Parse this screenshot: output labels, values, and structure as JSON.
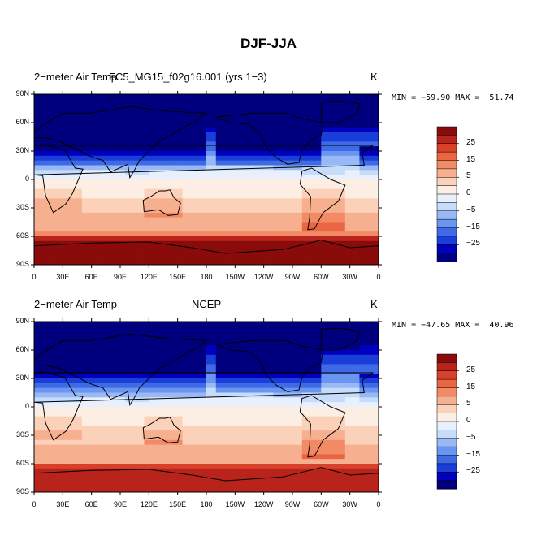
{
  "title": "DJF-JJA",
  "colors": {
    "levels": [
      "#00007f",
      "#0000bf",
      "#1a3ed8",
      "#3f6ae6",
      "#6a95f0",
      "#98b9f5",
      "#c6dcfb",
      "#e8f0fe",
      "#fdeee3",
      "#fbd2b9",
      "#f7b08f",
      "#f28a65",
      "#ea6541",
      "#d9402a",
      "#b8231b",
      "#8a0b0b"
    ],
    "coast": "#000000"
  },
  "chart_data": [
    {
      "type": "heatmap",
      "left_title": "2−meter Air Temp",
      "center_title": "FC5_MG15_f02g16.001 (yrs 1−3)",
      "units": "K",
      "min_label": "MIN = −59.90",
      "max_label": "MAX =  51.74",
      "min": -59.9,
      "max": 51.74,
      "y_ticks": [
        "90N",
        "60N",
        "30N",
        "0",
        "30S",
        "60S",
        "90S"
      ],
      "x_ticks": [
        "0",
        "30E",
        "60E",
        "90E",
        "120E",
        "150E",
        "180",
        "150W",
        "120W",
        "90W",
        "60W",
        "30W",
        "0"
      ],
      "colorbar_labels": [
        "25",
        "15",
        "5",
        "0",
        "−5",
        "−15",
        "−25"
      ]
    },
    {
      "type": "heatmap",
      "left_title": "2−meter Air Temp",
      "center_title": "NCEP",
      "units": "K",
      "min_label": "MIN = −47.65",
      "max_label": "MAX =  40.96",
      "min": -47.65,
      "max": 40.96,
      "y_ticks": [
        "90N",
        "60N",
        "30N",
        "0",
        "30S",
        "60S",
        "90S"
      ],
      "x_ticks": [
        "0",
        "30E",
        "60E",
        "90E",
        "120E",
        "150E",
        "180",
        "150W",
        "120W",
        "90W",
        "60W",
        "30W",
        "0"
      ],
      "colorbar_labels": [
        "25",
        "15",
        "5",
        "0",
        "−5",
        "−15",
        "−25"
      ]
    }
  ]
}
